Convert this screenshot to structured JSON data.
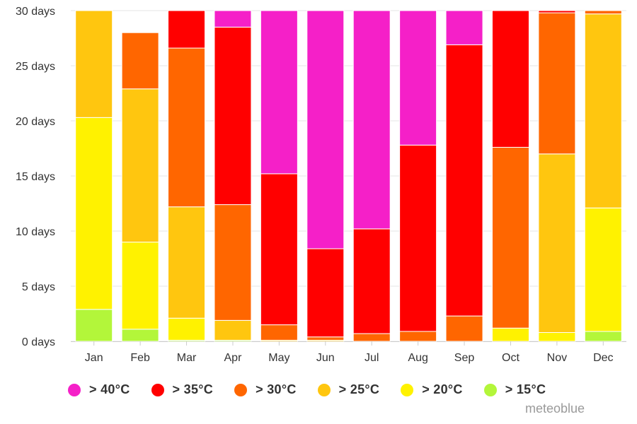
{
  "chart_data": {
    "type": "bar",
    "stacked": true,
    "title": "",
    "xlabel": "",
    "ylabel": "",
    "ylim": [
      0,
      30
    ],
    "yticks": [
      "0 days",
      "5 days",
      "10 days",
      "15 days",
      "20 days",
      "25 days",
      "30 days"
    ],
    "categories": [
      "Jan",
      "Feb",
      "Mar",
      "Apr",
      "May",
      "Jun",
      "Jul",
      "Aug",
      "Sep",
      "Oct",
      "Nov",
      "Dec"
    ],
    "grid": true,
    "legend_position": "bottom",
    "series": [
      {
        "name": "> 15°C",
        "color": "#b3f63a",
        "values": [
          2.9,
          1.1,
          0.1,
          0.1,
          0,
          0,
          0,
          0,
          0,
          0,
          0,
          0.9
        ]
      },
      {
        "name": "> 20°C",
        "color": "#fff200",
        "values": [
          17.4,
          7.9,
          2.0,
          0,
          0,
          0,
          0,
          0,
          0,
          1.2,
          0.8,
          11.2
        ]
      },
      {
        "name": "> 25°C",
        "color": "#ffc60f",
        "values": [
          9.7,
          13.9,
          10.1,
          1.8,
          0.1,
          0.1,
          0,
          0,
          0,
          0,
          16.2,
          17.6
        ]
      },
      {
        "name": "> 30°C",
        "color": "#ff6600",
        "values": [
          0,
          5.1,
          14.4,
          10.5,
          1.4,
          0.3,
          0.7,
          0.9,
          2.3,
          16.4,
          12.8,
          0.3
        ]
      },
      {
        "name": "> 35°C",
        "color": "#ff0000",
        "values": [
          0,
          0,
          3.4,
          16.1,
          13.7,
          8.0,
          9.5,
          16.9,
          24.6,
          12.4,
          0.2,
          0
        ]
      },
      {
        "name": "> 40°C",
        "color": "#f520c8",
        "values": [
          0,
          0,
          0,
          1.5,
          14.8,
          21.6,
          19.8,
          12.2,
          3.1,
          0,
          0,
          0
        ]
      }
    ],
    "legend_order": [
      "> 40°C",
      "> 35°C",
      "> 30°C",
      "> 25°C",
      "> 20°C",
      "> 15°C"
    ]
  },
  "credit": "meteoblue"
}
